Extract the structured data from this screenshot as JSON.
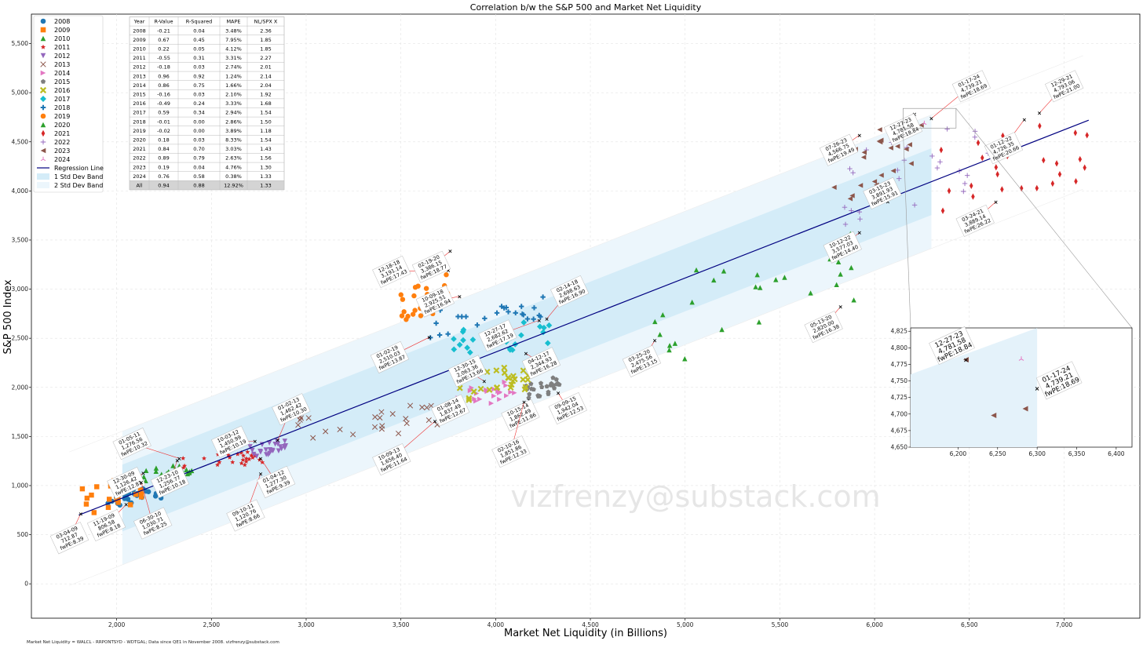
{
  "chart_data": {
    "type": "scatter",
    "title": "Correlation b/w the S&P 500 and Market Net Liquidity",
    "xlabel": "Market Net Liquidity (in Billions)",
    "ylabel": "S&P 500 Index",
    "xlim": [
      1550,
      7400
    ],
    "ylim": [
      -350,
      5800
    ],
    "x_ticks": [
      "2,000",
      "2,500",
      "3,000",
      "3,500",
      "4,000",
      "4,500",
      "5,000",
      "5,500",
      "6,000",
      "6,500",
      "7,000"
    ],
    "y_ticks": [
      "0",
      "500",
      "1,000",
      "1,500",
      "2,000",
      "2,500",
      "3,000",
      "3,500",
      "4,000",
      "4,500",
      "5,000",
      "5,500"
    ],
    "grid": true,
    "legend_position": "top-left",
    "legend": [
      "2008",
      "2009",
      "2010",
      "2011",
      "2012",
      "2013",
      "2014",
      "2015",
      "2016",
      "2017",
      "2018",
      "2019",
      "2020",
      "2021",
      "2022",
      "2023",
      "2024",
      "Regression Line",
      "1 Std Dev Band",
      "2 Std Dev Band"
    ],
    "series_colors": {
      "2008": "#1f77b4",
      "2009": "#ff7f0e",
      "2010": "#2ca02c",
      "2011": "#d62728",
      "2012": "#9467bd",
      "2013": "#8c564b",
      "2014": "#e377c2",
      "2015": "#7f7f7f",
      "2016": "#bcbd22",
      "2017": "#17becf",
      "2018": "#1f77b4",
      "2019": "#ff7f0e",
      "2020": "#2ca02c",
      "2021": "#d62728",
      "2022": "#9467bd",
      "2023": "#8c564b",
      "2024": "#e377c2"
    },
    "series_markers": {
      "2008": "circle",
      "2009": "square",
      "2010": "triangle-up",
      "2011": "star",
      "2012": "triangle-down",
      "2013": "x",
      "2014": "triangle-right",
      "2015": "pentagon",
      "2016": "x-bold",
      "2017": "diamond",
      "2018": "plus",
      "2019": "circle",
      "2020": "triangle-up",
      "2021": "thin-diamond",
      "2022": "plus-thin",
      "2023": "triangle-left",
      "2024": "tri"
    },
    "series_ranges": {
      "2008": {
        "x": [
          1950,
          2250
        ],
        "y": [
          780,
          1000
        ]
      },
      "2009": {
        "x": [
          1800,
          2150
        ],
        "y": [
          680,
          1130
        ]
      },
      "2010": {
        "x": [
          2100,
          2400
        ],
        "y": [
          1020,
          1250
        ]
      },
      "2011": {
        "x": [
          2350,
          2780
        ],
        "y": [
          1150,
          1370
        ]
      },
      "2012": {
        "x": [
          2700,
          2900
        ],
        "y": [
          1280,
          1470
        ]
      },
      "2013": {
        "x": [
          2900,
          3700
        ],
        "y": [
          1420,
          1850
        ]
      },
      "2014": {
        "x": [
          3800,
          4100
        ],
        "y": [
          1740,
          2090
        ]
      },
      "2015": {
        "x": [
          4150,
          4350
        ],
        "y": [
          1870,
          2120
        ]
      },
      "2016": {
        "x": [
          3800,
          4200
        ],
        "y": [
          1830,
          2270
        ]
      },
      "2017": {
        "x": [
          3650,
          4300
        ],
        "y": [
          2250,
          2700
        ]
      },
      "2018": {
        "x": [
          3650,
          4250
        ],
        "y": [
          2500,
          2930
        ]
      },
      "2019": {
        "x": [
          3500,
          3750
        ],
        "y": [
          2600,
          3180
        ]
      },
      "2020": {
        "x": [
          4800,
          5900
        ],
        "y": [
          2200,
          3580
        ]
      },
      "2021": {
        "x": [
          6300,
          7130
        ],
        "y": [
          3700,
          4800
        ]
      },
      "2022": {
        "x": [
          5800,
          6600
        ],
        "y": [
          3600,
          4800
        ]
      },
      "2023": {
        "x": [
          5700,
          6300
        ],
        "y": [
          3800,
          4800
        ]
      },
      "2024": {
        "x": [
          6150,
          6300
        ],
        "y": [
          4600,
          4830
        ]
      }
    },
    "regression": {
      "x": [
        1800,
        7130
      ],
      "y": [
        700,
        4720
      ]
    },
    "bands": {
      "x_range": [
        2030,
        6300
      ],
      "std1": 340,
      "std2": 680
    },
    "annotations": [
      {
        "date": "03-04-09",
        "value": "712.87",
        "pe": "fwPE:8.39",
        "x": 1810,
        "y": 713,
        "tx": 1750,
        "ty": 470
      },
      {
        "date": "11-19-09",
        "value": "806.58",
        "pe": "fwPE:8.18",
        "x": 2050,
        "y": 807,
        "tx": 1945,
        "ty": 600
      },
      {
        "date": "12-30-09",
        "value": "1,126.42",
        "pe": "fwPE:12.81",
        "x": 2140,
        "y": 1126,
        "tx": 2050,
        "ty": 1030
      },
      {
        "date": "06-30-10",
        "value": "1,030.71",
        "pe": "fwPE:8.25",
        "x": 2130,
        "y": 1031,
        "tx": 2190,
        "ty": 620
      },
      {
        "date": "12-23-10",
        "value": "1,256.77",
        "pe": "fwPE:10.18",
        "x": 2320,
        "y": 1257,
        "tx": 2280,
        "ty": 1040
      },
      {
        "date": "01-05-11",
        "value": "1,276.56",
        "pe": "fwPE:10.32",
        "x": 2330,
        "y": 1277,
        "tx": 2080,
        "ty": 1430
      },
      {
        "date": "10-03-12",
        "value": "1,450.99",
        "pe": "fwPE:10.19",
        "x": 2730,
        "y": 1451,
        "tx": 2600,
        "ty": 1450
      },
      {
        "date": "01-02-13",
        "value": "1,462.42",
        "pe": "fwPE:10.30",
        "x": 2850,
        "y": 1462,
        "tx": 2920,
        "ty": 1780
      },
      {
        "date": "09-10-11",
        "value": "1,120.76",
        "pe": "fwPE:8.66",
        "x": 2760,
        "y": 1121,
        "tx": 2680,
        "ty": 700
      },
      {
        "date": "01-04-12",
        "value": "1,277.30",
        "pe": "fwPE:9.39",
        "x": 2760,
        "y": 1277,
        "tx": 2840,
        "ty": 1040
      },
      {
        "date": "10-09-13",
        "value": "1,656.40",
        "pe": "fwPE:11.64",
        "x": 3680,
        "y": 1656,
        "tx": 3450,
        "ty": 1270
      },
      {
        "date": "01-08-14",
        "value": "1,837.49",
        "pe": "fwPE:12.67",
        "x": 3830,
        "y": 1837,
        "tx": 3760,
        "ty": 1770
      },
      {
        "date": "12-30-15",
        "value": "2,063.36",
        "pe": "fwPE:13.66",
        "x": 3940,
        "y": 2063,
        "tx": 3850,
        "ty": 2170
      },
      {
        "date": "10-15-14",
        "value": "1,862.49",
        "pe": "fwPE:11.86",
        "x": 4180,
        "y": 1862,
        "tx": 4130,
        "ty": 1720
      },
      {
        "date": "02-10-16",
        "value": "1,851.86",
        "pe": "fwPE:12.33",
        "x": 4150,
        "y": 1852,
        "tx": 4080,
        "ty": 1350
      },
      {
        "date": "09-09-15",
        "value": "1,942.04",
        "pe": "fwPE:12.53",
        "x": 4330,
        "y": 1942,
        "tx": 4380,
        "ty": 1790
      },
      {
        "date": "04-12-17",
        "value": "2,344.93",
        "pe": "fwPE:16.28",
        "x": 4160,
        "y": 2345,
        "tx": 4240,
        "ty": 2250
      },
      {
        "date": "12-27-17",
        "value": "2,682.62",
        "pe": "fwPE:17.19",
        "x": 4230,
        "y": 2683,
        "tx": 4010,
        "ty": 2530
      },
      {
        "date": "02-14-18",
        "value": "2,698.63",
        "pe": "fwPE:16.90",
        "x": 4270,
        "y": 2699,
        "tx": 4390,
        "ty": 2980
      },
      {
        "date": "12-18-18",
        "value": "3,191.14",
        "pe": "fwPE:17.43",
        "x": 3750,
        "y": 3191,
        "tx": 3450,
        "ty": 3180
      },
      {
        "date": "02-19-20",
        "value": "3,386.15",
        "pe": "fwPE:18.77",
        "x": 3760,
        "y": 3386,
        "tx": 3660,
        "ty": 3230
      },
      {
        "date": "10-09-18",
        "value": "2,925.51",
        "pe": "fwPE:16.94",
        "x": 3810,
        "y": 2926,
        "tx": 3680,
        "ty": 2880
      },
      {
        "date": "01-02-19",
        "value": "2,510.03",
        "pe": "fwPE:13.87",
        "x": 3650,
        "y": 2510,
        "tx": 3440,
        "ty": 2310
      },
      {
        "date": "03-25-20",
        "value": "2,475.56",
        "pe": "fwPE:13.15",
        "x": 4840,
        "y": 2476,
        "tx": 4770,
        "ty": 2270
      },
      {
        "date": "05-13-20",
        "value": "2,820.00",
        "pe": "fwPE:16.38",
        "x": 5820,
        "y": 2820,
        "tx": 5730,
        "ty": 2620
      },
      {
        "date": "10-12-22",
        "value": "3,577.03",
        "pe": "fwPE:14.40",
        "x": 5920,
        "y": 3577,
        "tx": 5830,
        "ty": 3430
      },
      {
        "date": "07-26-23",
        "value": "4,566.75",
        "pe": "fwPE:19.49",
        "x": 5920,
        "y": 4567,
        "tx": 5810,
        "ty": 4420
      },
      {
        "date": "03-15-23",
        "value": "3,891.93",
        "pe": "fwPE:15.91",
        "x": 6070,
        "y": 3892,
        "tx": 6040,
        "ty": 3980
      },
      {
        "date": "12-27-23",
        "value": "4,781.58",
        "pe": "fwPE:18.84",
        "x": 6210,
        "y": 4782,
        "tx": 6150,
        "ty": 4630
      },
      {
        "date": "01-17-24",
        "value": "4,739.21",
        "pe": "fwPE:18.69",
        "x": 6300,
        "y": 4739,
        "tx": 6510,
        "ty": 5070
      },
      {
        "date": "12-29-21",
        "value": "4,793.06",
        "pe": "fwPE:21.00",
        "x": 6870,
        "y": 4793,
        "tx": 7000,
        "ty": 5070
      },
      {
        "date": "01-12-22",
        "value": "4,726.35",
        "pe": "fwPE:20.66",
        "x": 6790,
        "y": 4726,
        "tx": 6680,
        "ty": 4440
      },
      {
        "date": "03-24-21",
        "value": "3,889.14",
        "pe": "fwPE:26.22",
        "x": 6640,
        "y": 3889,
        "tx": 6530,
        "ty": 3700
      }
    ],
    "stats_table": {
      "headers": [
        "Year",
        "R-Value",
        "R-Squared",
        "MAPE",
        "NL/SPX X"
      ],
      "rows": [
        [
          "2008",
          "-0.21",
          "0.04",
          "3.48%",
          "2.36"
        ],
        [
          "2009",
          "0.67",
          "0.45",
          "7.95%",
          "1.85"
        ],
        [
          "2010",
          "0.22",
          "0.05",
          "4.12%",
          "1.85"
        ],
        [
          "2011",
          "-0.55",
          "0.31",
          "3.31%",
          "2.27"
        ],
        [
          "2012",
          "-0.18",
          "0.03",
          "2.74%",
          "2.01"
        ],
        [
          "2013",
          "0.96",
          "0.92",
          "1.24%",
          "2.14"
        ],
        [
          "2014",
          "0.86",
          "0.75",
          "1.66%",
          "2.04"
        ],
        [
          "2015",
          "-0.16",
          "0.03",
          "2.10%",
          "1.92"
        ],
        [
          "2016",
          "-0.49",
          "0.24",
          "3.33%",
          "1.68"
        ],
        [
          "2017",
          "0.59",
          "0.34",
          "2.94%",
          "1.54"
        ],
        [
          "2018",
          "-0.01",
          "0.00",
          "2.86%",
          "1.50"
        ],
        [
          "2019",
          "-0.02",
          "0.00",
          "3.89%",
          "1.18"
        ],
        [
          "2020",
          "0.18",
          "0.03",
          "8.33%",
          "1.54"
        ],
        [
          "2021",
          "0.84",
          "0.70",
          "3.03%",
          "1.43"
        ],
        [
          "2022",
          "0.89",
          "0.79",
          "2.63%",
          "1.56"
        ],
        [
          "2023",
          "0.19",
          "0.04",
          "4.76%",
          "1.30"
        ],
        [
          "2024",
          "0.76",
          "0.58",
          "0.38%",
          "1.33"
        ],
        [
          "All",
          "0.94",
          "0.88",
          "12.92%",
          "1.33"
        ]
      ]
    },
    "inset": {
      "xlim": [
        6140,
        6420
      ],
      "ylim": [
        4650,
        4830
      ],
      "x_ticks": [
        "6,200",
        "6,250",
        "6,300",
        "6,350",
        "6,400"
      ],
      "y_ticks": [
        "4,650",
        "4,675",
        "4,700",
        "4,725",
        "4,750",
        "4,775",
        "4,800",
        "4,825"
      ],
      "points": [
        {
          "series": "2023",
          "x": 6210,
          "y": 4782
        },
        {
          "series": "2023",
          "x": 6245,
          "y": 4698
        },
        {
          "series": "2023",
          "x": 6285,
          "y": 4708
        },
        {
          "series": "2024",
          "x": 6280,
          "y": 4783
        }
      ],
      "annotations": [
        {
          "date": "12-27-23",
          "value": "4,781.58",
          "pe": "fwPE:18.84",
          "x": 6210,
          "y": 4782
        },
        {
          "date": "01-17-24",
          "value": "4,739.21",
          "pe": "fwPE:18.69",
          "x": 6300,
          "y": 4739
        }
      ]
    },
    "watermark": "vizfrenzy@substack.com",
    "footnote": "Market Net Liquidity = WALCL - RRPONTSYD - WDTGAL; Data since QE1 in November 2008. vizfrenzy@substack.com"
  }
}
